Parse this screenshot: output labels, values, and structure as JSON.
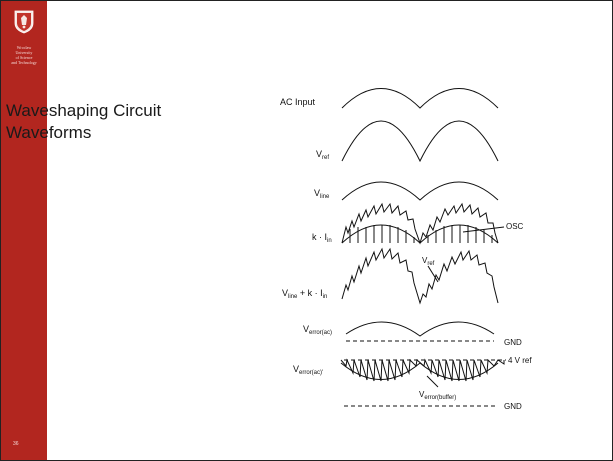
{
  "slide": {
    "title_line_1": "Waveshaping Circuit",
    "title_line_2": "Waveforms",
    "slide_number": "36",
    "university": [
      "Wroclaw",
      "University",
      "of Science",
      "and Technology"
    ]
  },
  "diagram": {
    "ac_input": "AC Input",
    "v_ref": {
      "base": "V",
      "sub": "ref"
    },
    "v_line": {
      "base": "V",
      "sub": "line"
    },
    "k_iin": {
      "pre": "k · I",
      "sub": "in"
    },
    "osc": "OSC",
    "vref_annot": {
      "base": "V",
      "sub": "ref"
    },
    "sum": {
      "b1": "V",
      "s1": "line",
      "mid": " + k · I",
      "s2": "in"
    },
    "v_error_ac": {
      "base": "V",
      "sub": "error(ac)"
    },
    "v_error_ac_prime": {
      "base": "V",
      "sub": "error(ac)'"
    },
    "gnd_1": "GND",
    "ref_4v": "4 V ref",
    "v_error_buffer": {
      "base": "V",
      "sub": "error(buffer)"
    },
    "gnd_2": "GND"
  }
}
